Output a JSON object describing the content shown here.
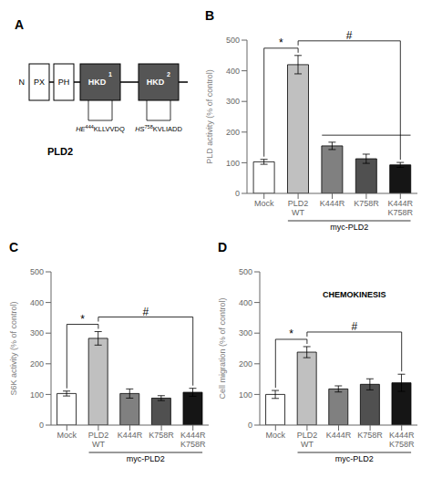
{
  "chart_data": [
    {
      "type": "diagram",
      "panel_label": "A",
      "title": "PLD2",
      "terminus": "N",
      "domains": [
        {
          "name": "PX",
          "color": "#ffffff"
        },
        {
          "name": "PH",
          "color": "#ffffff"
        },
        {
          "name": "HKD",
          "index": 1,
          "color": "#555555",
          "motif": {
            "before": "HE",
            "site": 444,
            "after": "KLLVVDQ"
          }
        },
        {
          "name": "HKD",
          "index": 2,
          "color": "#555555",
          "motif": {
            "before": "HS",
            "site": 758,
            "after": "KVLIADD"
          }
        }
      ]
    },
    {
      "type": "bar",
      "panel_label": "B",
      "categories": [
        "Mock",
        "PLD2\nWT",
        "K444R",
        "K758R",
        "K444R\nK758R"
      ],
      "values": [
        103,
        420,
        155,
        113,
        93
      ],
      "errors": [
        8,
        30,
        12,
        15,
        8
      ],
      "colors": [
        "#ffffff",
        "#c0c0c0",
        "#808080",
        "#505050",
        "#151515"
      ],
      "ylabel": "PLD activity (% of control)",
      "ylim": [
        0,
        500
      ],
      "yticks": [
        0,
        100,
        200,
        300,
        400,
        500
      ],
      "annotations": [
        {
          "text": "myc-PLD2",
          "from": "PLD2\nWT",
          "to": "K444R\nK758R"
        }
      ],
      "significance": [
        {
          "from": "Mock",
          "to": "PLD2\nWT",
          "label": "*"
        },
        {
          "from": "PLD2\nWT",
          "to": "K444R\nK758R",
          "label": "#"
        }
      ],
      "mid_line": {
        "y": 190,
        "from": "K444R",
        "to": "K444R\nK758R"
      }
    },
    {
      "type": "bar",
      "panel_label": "C",
      "categories": [
        "Mock",
        "PLD2\nWT",
        "K444R",
        "K758R",
        "K444R\nK758R"
      ],
      "values": [
        103,
        283,
        103,
        88,
        107
      ],
      "errors": [
        8,
        22,
        15,
        8,
        13
      ],
      "colors": [
        "#ffffff",
        "#c0c0c0",
        "#808080",
        "#505050",
        "#151515"
      ],
      "ylabel": "S6K activity (% of control)",
      "ylim": [
        0,
        500
      ],
      "yticks": [
        0,
        100,
        200,
        300,
        400,
        500
      ],
      "annotations": [
        {
          "text": "myc-PLD2",
          "from": "PLD2\nWT",
          "to": "K444R\nK758R"
        }
      ],
      "significance": [
        {
          "from": "Mock",
          "to": "PLD2\nWT",
          "label": "*"
        },
        {
          "from": "PLD2\nWT",
          "to": "K444R\nK758R",
          "label": "#"
        }
      ]
    },
    {
      "type": "bar",
      "panel_label": "D",
      "title": "CHEMOKINESIS",
      "categories": [
        "Mock",
        "PLD2\nWT",
        "K444R",
        "K758R",
        "K444R\nK758R"
      ],
      "values": [
        100,
        238,
        118,
        133,
        138
      ],
      "errors": [
        13,
        18,
        10,
        18,
        28
      ],
      "colors": [
        "#ffffff",
        "#c0c0c0",
        "#808080",
        "#505050",
        "#151515"
      ],
      "ylabel": "Cell migration (% of control)",
      "ylim": [
        0,
        500
      ],
      "yticks": [
        0,
        100,
        200,
        300,
        400,
        500
      ],
      "annotations": [
        {
          "text": "myc-PLD2",
          "from": "PLD2\nWT",
          "to": "K444R\nK758R"
        }
      ],
      "significance": [
        {
          "from": "Mock",
          "to": "PLD2\nWT",
          "label": "*"
        },
        {
          "from": "PLD2\nWT",
          "to": "K444R\nK758R",
          "label": "#"
        }
      ]
    }
  ]
}
